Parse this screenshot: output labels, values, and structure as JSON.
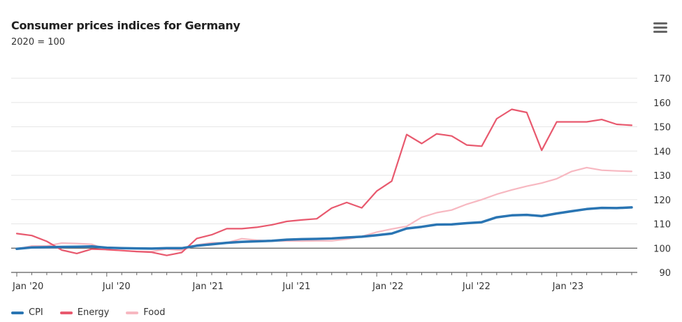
{
  "header": {
    "title": "Consumer prices indices for Germany",
    "subtitle": "2020 = 100",
    "menu_icon": "hamburger-menu-icon"
  },
  "chart_data": {
    "type": "line",
    "title": "Consumer prices indices for Germany",
    "subtitle": "2020 = 100",
    "xlabel": "",
    "ylabel": "",
    "x_start": "2020-01",
    "x_frequency": "monthly",
    "x_tick_labels": [
      "Jan '20",
      "Jul '20",
      "Jan '21",
      "Jul '21",
      "Jan '22",
      "Jul '22",
      "Jan '23"
    ],
    "x_tick_months": [
      0,
      6,
      12,
      18,
      24,
      30,
      36
    ],
    "y_ticks": [
      90,
      100,
      110,
      120,
      130,
      140,
      150,
      160,
      170
    ],
    "ylim": [
      90,
      170
    ],
    "y_axis_position": "right",
    "reference_line": 100,
    "grid": true,
    "legend_position": "bottom-left",
    "series": [
      {
        "name": "CPI",
        "color": "#2a75b3",
        "values": [
          99.7,
          100.3,
          100.4,
          100.5,
          100.6,
          100.7,
          100.2,
          100.0,
          99.9,
          99.8,
          100.0,
          100.0,
          101.0,
          101.6,
          102.2,
          102.6,
          102.8,
          103.0,
          103.5,
          103.7,
          103.8,
          104.0,
          104.4,
          104.7,
          105.3,
          106.0,
          108.1,
          108.8,
          109.7,
          109.8,
          110.3,
          110.7,
          112.7,
          113.5,
          113.7,
          113.2,
          114.3,
          115.2,
          116.1,
          116.6,
          116.5,
          116.8
        ],
        "line_width": "thick"
      },
      {
        "name": "Energy",
        "color": "#e8596e",
        "values": [
          106.0,
          105.2,
          102.8,
          99.2,
          97.8,
          99.6,
          99.4,
          99.0,
          98.6,
          98.3,
          97.0,
          98.2,
          104.0,
          105.5,
          108.0,
          108.0,
          108.6,
          109.6,
          111.0,
          111.6,
          112.1,
          116.5,
          118.8,
          116.6,
          123.5,
          127.6,
          146.8,
          143.1,
          147.1,
          146.2,
          142.5,
          142.0,
          153.3,
          157.2,
          155.9,
          140.3,
          152.0,
          152.0,
          152.0,
          153.0,
          151.0,
          150.6
        ],
        "line_width": "medium"
      },
      {
        "name": "Food",
        "color": "#f7b8c1",
        "values": [
          99.6,
          100.9,
          100.9,
          102.1,
          101.9,
          101.6,
          99.3,
          99.0,
          98.6,
          98.6,
          99.6,
          99.1,
          101.3,
          102.2,
          102.2,
          103.9,
          103.3,
          102.9,
          103.0,
          102.9,
          103.0,
          103.0,
          103.7,
          104.8,
          106.6,
          107.9,
          109.0,
          112.7,
          114.6,
          115.7,
          118.1,
          120.0,
          122.2,
          124.0,
          125.5,
          126.8,
          128.6,
          131.6,
          133.2,
          132.1,
          131.8,
          131.6
        ],
        "line_width": "medium"
      }
    ]
  },
  "legend": {
    "items": [
      {
        "label": "CPI",
        "color": "#2a75b3"
      },
      {
        "label": "Energy",
        "color": "#e8596e"
      },
      {
        "label": "Food",
        "color": "#f7b8c1"
      }
    ]
  }
}
